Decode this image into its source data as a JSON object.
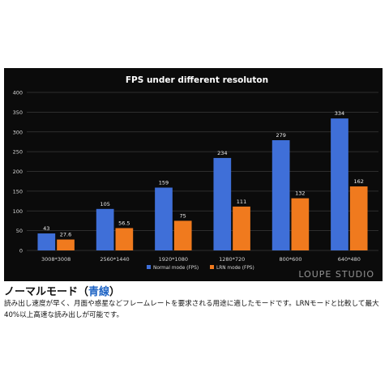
{
  "caption": {
    "heading_main": "ノーマルモード",
    "heading_open": "（",
    "heading_accent": "青線",
    "heading_close": "）",
    "body": "読み出し速度が早く、月面や惑星などフレームレートを要求される用途に適したモードです。LRNモードと比較して最大40%以上高速な読み出しが可能です。"
  },
  "watermark": "LOUPE STUDIO",
  "chart_data": {
    "type": "bar",
    "title": "FPS under different resoluton",
    "categories": [
      "3008*3008",
      "2560*1440",
      "1920*1080",
      "1280*720",
      "800*600",
      "640*480"
    ],
    "series": [
      {
        "name": "Normal mode (FPS)",
        "values": [
          43,
          105,
          159,
          234,
          279,
          334
        ],
        "color": "#3f6fd8"
      },
      {
        "name": "LRN mode (FPS)",
        "values": [
          27.6,
          56.5,
          75,
          111,
          132,
          162
        ],
        "color": "#f07a1e"
      }
    ],
    "value_labels": [
      [
        "43",
        "105",
        "159",
        "234",
        "279",
        "334"
      ],
      [
        "27.6",
        "56.5",
        "75",
        "111",
        "132",
        "162"
      ]
    ],
    "ylim": [
      0,
      400
    ],
    "yticks": [
      0,
      50,
      100,
      150,
      200,
      250,
      300,
      350,
      400
    ],
    "grid": true,
    "legend": "bottom"
  }
}
